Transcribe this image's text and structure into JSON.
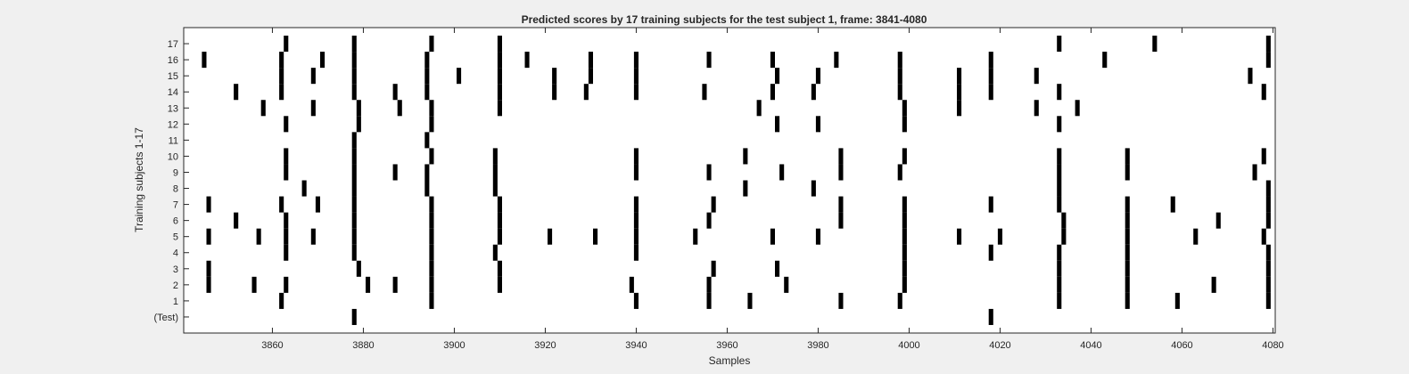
{
  "chart_data": {
    "type": "raster",
    "title": "Predicted scores by 17 training subjects for the test subject 1, frame: 3841-4080",
    "xlabel": "Samples",
    "ylabel": "Training subjects 1-17",
    "xlim": [
      3841,
      4080
    ],
    "x_ticks": [
      3860,
      3880,
      3900,
      3920,
      3940,
      3960,
      3980,
      4000,
      4020,
      4040,
      4060,
      4080
    ],
    "rows": [
      "(Test)",
      "1",
      "2",
      "3",
      "4",
      "5",
      "6",
      "7",
      "8",
      "9",
      "10",
      "11",
      "12",
      "13",
      "14",
      "15",
      "16",
      "17"
    ],
    "grid": false,
    "mark_color": "#000000",
    "background_color": "#ffffff",
    "events": [
      {
        "row": "(Test)",
        "x": [
          3878,
          4018
        ]
      },
      {
        "row": "1",
        "x": [
          3862,
          3895,
          3940,
          3956,
          3965,
          3985,
          3998,
          4033,
          4048,
          4059,
          4079
        ]
      },
      {
        "row": "2",
        "x": [
          3846,
          3856,
          3863,
          3881,
          3887,
          3895,
          3910,
          3939,
          3956,
          3973,
          3999,
          4033,
          4048,
          4067,
          4079
        ]
      },
      {
        "row": "3",
        "x": [
          3846,
          3879,
          3895,
          3910,
          3957,
          3971,
          3999,
          4033,
          4048,
          4079
        ]
      },
      {
        "row": "4",
        "x": [
          3863,
          3878,
          3895,
          3909,
          3940,
          3999,
          4018,
          4033,
          4048,
          4079
        ]
      },
      {
        "row": "5",
        "x": [
          3846,
          3857,
          3863,
          3869,
          3878,
          3895,
          3910,
          3921,
          3931,
          3940,
          3953,
          3970,
          3980,
          3999,
          4011,
          4020,
          4034,
          4048,
          4063,
          4078
        ]
      },
      {
        "row": "6",
        "x": [
          3852,
          3863,
          3878,
          3895,
          3910,
          3940,
          3956,
          3985,
          3999,
          4034,
          4048,
          4068,
          4079
        ]
      },
      {
        "row": "7",
        "x": [
          3846,
          3862,
          3870,
          3878,
          3895,
          3910,
          3940,
          3957,
          3985,
          3999,
          4018,
          4033,
          4048,
          4058,
          4079
        ]
      },
      {
        "row": "8",
        "x": [
          3867,
          3878,
          3894,
          3909,
          3964,
          3979,
          4033,
          4079
        ]
      },
      {
        "row": "9",
        "x": [
          3863,
          3878,
          3887,
          3894,
          3909,
          3940,
          3956,
          3972,
          3985,
          3998,
          4033,
          4048,
          4076
        ]
      },
      {
        "row": "10",
        "x": [
          3863,
          3878,
          3895,
          3909,
          3940,
          3964,
          3985,
          3999,
          4033,
          4048,
          4078
        ]
      },
      {
        "row": "11",
        "x": [
          3878,
          3894
        ]
      },
      {
        "row": "12",
        "x": [
          3863,
          3879,
          3895,
          3971,
          3980,
          3999,
          4033
        ]
      },
      {
        "row": "13",
        "x": [
          3858,
          3869,
          3879,
          3888,
          3895,
          3910,
          3967,
          3999,
          4011,
          4028,
          4037
        ]
      },
      {
        "row": "14",
        "x": [
          3852,
          3862,
          3878,
          3887,
          3894,
          3910,
          3922,
          3929,
          3940,
          3955,
          3970,
          3979,
          3998,
          4011,
          4018,
          4033,
          4078
        ]
      },
      {
        "row": "15",
        "x": [
          3862,
          3869,
          3878,
          3894,
          3901,
          3910,
          3922,
          3930,
          3940,
          3971,
          3980,
          3998,
          4011,
          4018,
          4028,
          4075
        ]
      },
      {
        "row": "16",
        "x": [
          3845,
          3862,
          3871,
          3878,
          3894,
          3910,
          3916,
          3930,
          3940,
          3956,
          3970,
          3984,
          3998,
          4018,
          4043,
          4079
        ]
      },
      {
        "row": "17",
        "x": [
          3863,
          3878,
          3895,
          3910,
          4033,
          4054,
          4079
        ]
      }
    ]
  }
}
